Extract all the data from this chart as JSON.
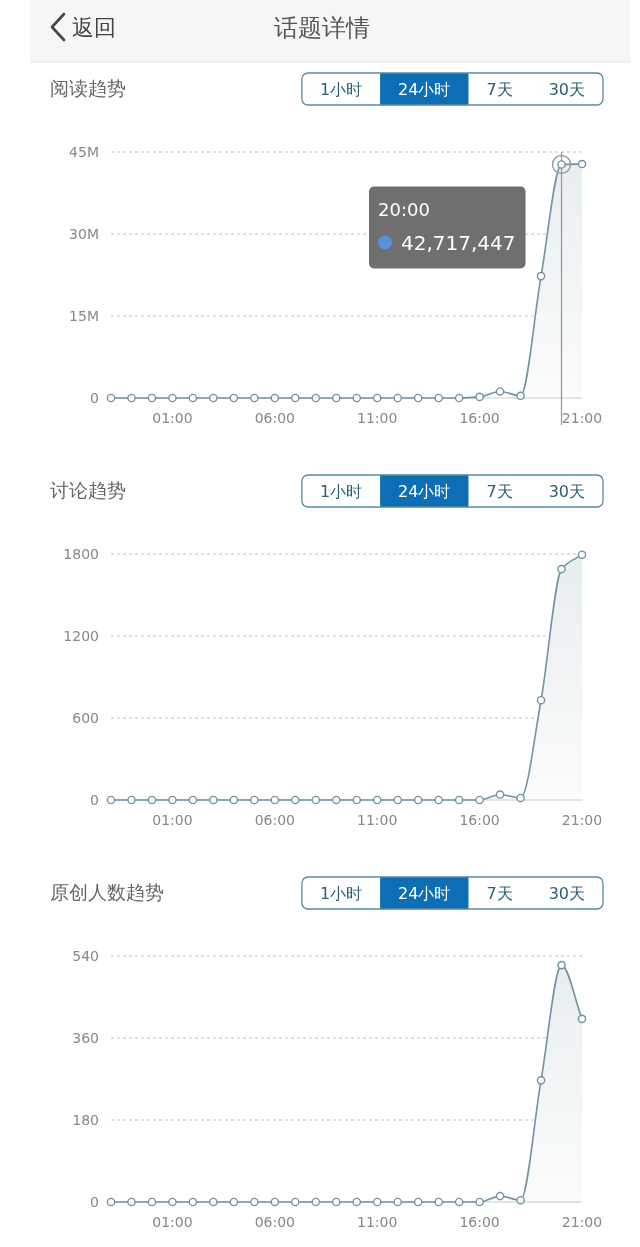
{
  "chart_data": [
    {
      "type": "other",
      "title": "话题详情",
      "annotations": [
        "返回"
      ]
    },
    {
      "type": "area",
      "title": "阅读趋势",
      "annotations": [
        "1小时",
        "24小时",
        "7天",
        "30天",
        "20:00",
        "42,717,447"
      ],
      "x": [
        -2,
        -1,
        0,
        1,
        2,
        3,
        4,
        5,
        6,
        7,
        8,
        9,
        10,
        11,
        12,
        13,
        14,
        15,
        16,
        17,
        18,
        19,
        20,
        21
      ],
      "values": [
        0,
        0,
        0,
        0,
        0,
        0,
        0,
        0,
        0,
        0,
        0,
        0,
        0,
        0,
        0,
        0,
        0,
        0,
        200000,
        1200000,
        400000,
        22300000,
        42717447,
        42800000
      ],
      "color": "#7393a3",
      "xlim": [
        -2,
        21
      ],
      "xticks": [
        {
          "value": 1,
          "label": "01:00"
        },
        {
          "value": 6,
          "label": "06:00"
        },
        {
          "value": 11,
          "label": "11:00"
        },
        {
          "value": 16,
          "label": "16:00"
        },
        {
          "value": 21,
          "label": "21:00"
        }
      ],
      "ylim": [
        0,
        45000000
      ],
      "yticks": [
        0,
        {
          "value": 15000000,
          "label": "15M"
        },
        {
          "value": 30000000,
          "label": "30M"
        },
        {
          "value": 45000000,
          "label": "45M"
        }
      ],
      "grid": "y",
      "marker": "circle",
      "ref_lines": [
        {
          "axis": "x",
          "value": 20,
          "color": "#9a9a9a"
        }
      ]
    },
    {
      "type": "area",
      "title": "讨论趋势",
      "annotations": [
        "1小时",
        "24小时",
        "7天",
        "30天"
      ],
      "x": [
        -2,
        -1,
        0,
        1,
        2,
        3,
        4,
        5,
        6,
        7,
        8,
        9,
        10,
        11,
        12,
        13,
        14,
        15,
        16,
        17,
        18,
        19,
        20,
        21
      ],
      "values": [
        0,
        0,
        0,
        0,
        0,
        0,
        0,
        0,
        0,
        0,
        0,
        0,
        0,
        0,
        0,
        0,
        0,
        0,
        0,
        40,
        15,
        730,
        1690,
        1795
      ],
      "color": "#7393a3",
      "xlim": [
        -2,
        21
      ],
      "xticks": [
        {
          "value": 1,
          "label": "01:00"
        },
        {
          "value": 6,
          "label": "06:00"
        },
        {
          "value": 11,
          "label": "11:00"
        },
        {
          "value": 16,
          "label": "16:00"
        },
        {
          "value": 21,
          "label": "21:00"
        }
      ],
      "ylim": [
        0,
        1800
      ],
      "yticks": [
        0,
        600,
        1200,
        1800
      ],
      "grid": "y",
      "marker": "circle"
    },
    {
      "type": "area",
      "title": "原创人数趋势",
      "annotations": [
        "1小时",
        "24小时",
        "7天",
        "30天"
      ],
      "x": [
        -2,
        -1,
        0,
        1,
        2,
        3,
        4,
        5,
        6,
        7,
        8,
        9,
        10,
        11,
        12,
        13,
        14,
        15,
        16,
        17,
        18,
        19,
        20,
        21
      ],
      "values": [
        0,
        0,
        0,
        0,
        0,
        0,
        0,
        0,
        0,
        0,
        0,
        0,
        0,
        0,
        0,
        0,
        0,
        0,
        0,
        13,
        4,
        267,
        520,
        402
      ],
      "color": "#7393a3",
      "xlim": [
        -2,
        21
      ],
      "xticks": [
        {
          "value": 1,
          "label": "01:00"
        },
        {
          "value": 6,
          "label": "06:00"
        },
        {
          "value": 11,
          "label": "11:00"
        },
        {
          "value": 16,
          "label": "16:00"
        },
        {
          "value": 21,
          "label": "21:00"
        }
      ],
      "ylim": [
        0,
        540
      ],
      "yticks": [
        0,
        180,
        360,
        540
      ],
      "grid": "y",
      "marker": "circle"
    }
  ]
}
